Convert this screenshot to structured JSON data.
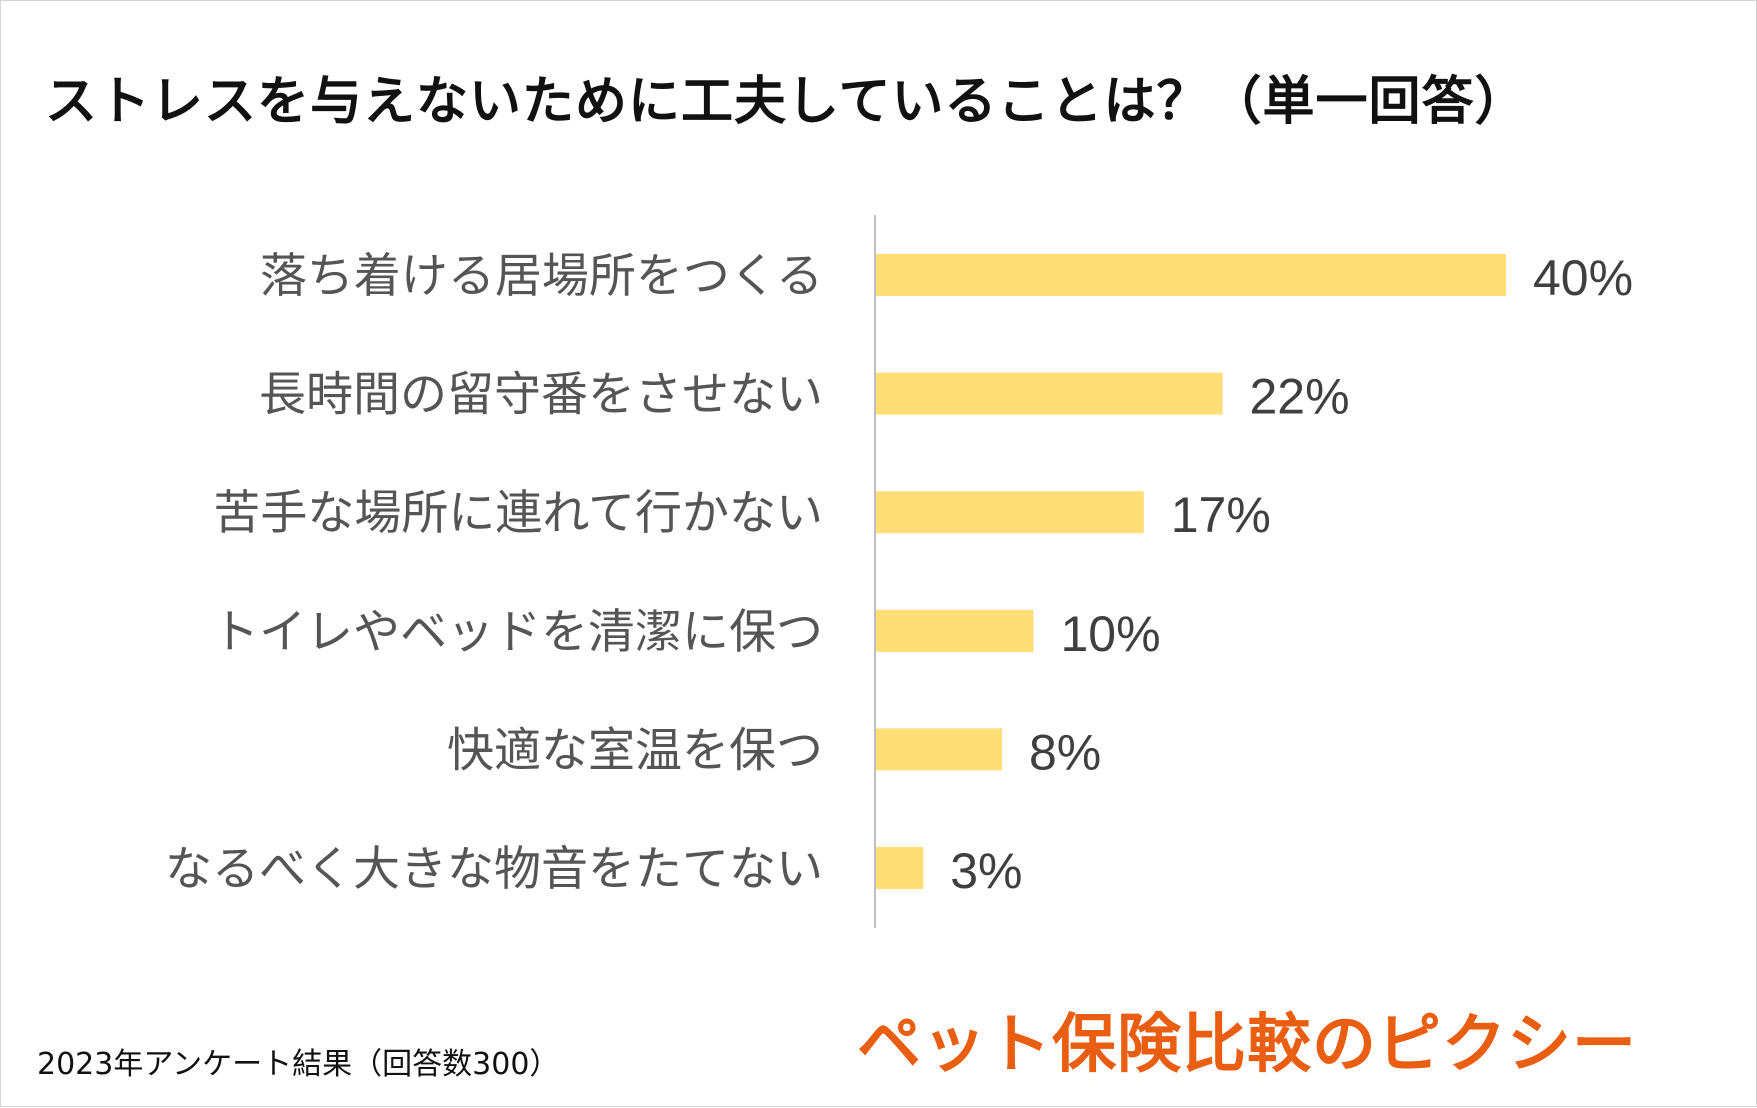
{
  "title": "ストレスを与えないために工夫していることは？（単一回答）",
  "footnote": "2023年アンケート結果（回答数300）",
  "brand": "ペット保険比較のピクシー",
  "colors": {
    "bar": "#ffdd77",
    "axis": "#bfbfbf",
    "label": "#555555",
    "value": "#3f3f3f",
    "brand": "#ea5e11"
  },
  "chart_data": {
    "type": "bar",
    "orientation": "horizontal",
    "categories": [
      "落ち着ける居場所をつくる",
      "長時間の留守番をさせない",
      "苦手な場所に連れて行かない",
      "トイレやベッドを清潔に保つ",
      "快適な室温を保つ",
      "なるべく大きな物音をたてない"
    ],
    "values": [
      40,
      22,
      17,
      10,
      8,
      3
    ],
    "value_labels": [
      "40%",
      "22%",
      "17%",
      "10%",
      "8%",
      "3%"
    ],
    "unit": "%",
    "xlim": [
      0,
      40
    ],
    "grid": false,
    "legend": "none"
  }
}
